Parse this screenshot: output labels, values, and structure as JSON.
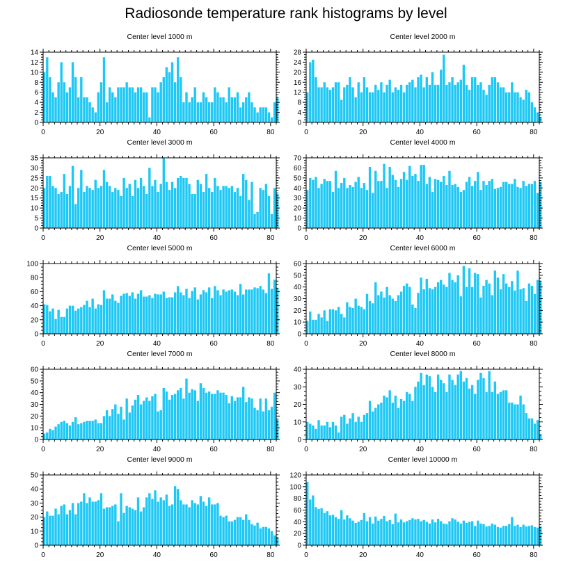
{
  "title": "Radiosonde temperature rank histograms by level",
  "colors": {
    "bar": "#1ec8f5",
    "axis": "#000000"
  },
  "chart_data": [
    {
      "type": "bar",
      "title": "Center level 1000 m",
      "xlim": [
        0,
        82
      ],
      "ylim": [
        0,
        14
      ],
      "xticks": [
        0,
        20,
        40,
        60,
        80
      ],
      "yticks": [
        0,
        2,
        4,
        6,
        8,
        10,
        12,
        14
      ],
      "values": [
        10,
        13,
        9,
        6,
        5,
        8,
        12,
        8,
        6,
        7,
        12,
        9,
        5,
        9,
        5,
        5,
        4,
        3,
        2,
        6,
        8,
        13,
        4,
        7,
        6,
        5,
        7,
        7,
        7,
        8,
        7,
        7,
        6,
        7,
        7,
        6,
        6,
        1,
        7,
        7,
        6,
        8,
        9,
        11,
        10,
        12,
        8,
        13,
        9,
        4,
        6,
        4,
        5,
        7,
        4,
        4,
        6,
        5,
        4,
        4,
        7,
        6,
        5,
        5,
        4,
        7,
        5,
        5,
        6,
        3,
        4,
        5,
        6,
        4,
        3,
        2,
        3,
        3,
        3,
        2,
        1,
        4,
        5
      ],
      "xlabel": "",
      "ylabel": ""
    },
    {
      "type": "bar",
      "title": "Center level 2000 m",
      "xlim": [
        0,
        82
      ],
      "ylim": [
        0,
        28
      ],
      "xticks": [
        0,
        20,
        40,
        60,
        80
      ],
      "yticks": [
        0,
        4,
        8,
        12,
        16,
        20,
        24,
        28
      ],
      "values": [
        12,
        24,
        25,
        18,
        14,
        14,
        16,
        14,
        13,
        14,
        16,
        16,
        9,
        14,
        15,
        18,
        14,
        10,
        16,
        12,
        18,
        14,
        12,
        12,
        15,
        13,
        16,
        12,
        15,
        17,
        12,
        14,
        13,
        15,
        12,
        15,
        16,
        17,
        14,
        18,
        19,
        14,
        18,
        15,
        20,
        15,
        15,
        21,
        27,
        15,
        16,
        18,
        15,
        16,
        17,
        23,
        15,
        13,
        18,
        18,
        15,
        16,
        13,
        11,
        15,
        18,
        18,
        16,
        14,
        14,
        12,
        12,
        16,
        12,
        12,
        10,
        9,
        13,
        12,
        8,
        6,
        4,
        2
      ],
      "xlabel": "",
      "ylabel": ""
    },
    {
      "type": "bar",
      "title": "Center level 3000 m",
      "xlim": [
        0,
        82
      ],
      "ylim": [
        0,
        35
      ],
      "xticks": [
        0,
        20,
        40,
        60,
        80
      ],
      "yticks": [
        0,
        5,
        10,
        15,
        20,
        25,
        30,
        35
      ],
      "values": [
        20,
        26,
        26,
        21,
        20,
        17,
        18,
        27,
        17,
        21,
        31,
        12,
        20,
        29,
        18,
        21,
        20,
        19,
        24,
        20,
        21,
        29,
        23,
        21,
        18,
        20,
        19,
        16,
        25,
        20,
        22,
        16,
        24,
        20,
        25,
        21,
        17,
        30,
        21,
        24,
        18,
        22,
        35,
        23,
        19,
        23,
        20,
        25,
        26,
        25,
        25,
        22,
        17,
        17,
        24,
        22,
        18,
        27,
        20,
        18,
        25,
        21,
        19,
        21,
        21,
        20,
        21,
        18,
        20,
        16,
        27,
        24,
        14,
        23,
        7,
        8,
        20,
        19,
        22,
        16,
        7,
        20,
        17
      ],
      "xlabel": "",
      "ylabel": ""
    },
    {
      "type": "bar",
      "title": "Center level 4000 m",
      "xlim": [
        0,
        82
      ],
      "ylim": [
        0,
        70
      ],
      "xticks": [
        0,
        20,
        40,
        60,
        80
      ],
      "yticks": [
        0,
        10,
        20,
        30,
        40,
        50,
        60,
        70
      ],
      "values": [
        38,
        50,
        48,
        51,
        40,
        44,
        49,
        47,
        47,
        36,
        57,
        40,
        45,
        50,
        40,
        43,
        41,
        46,
        51,
        40,
        45,
        38,
        61,
        35,
        57,
        47,
        47,
        64,
        40,
        61,
        53,
        48,
        41,
        49,
        56,
        48,
        62,
        52,
        54,
        47,
        63,
        63,
        44,
        51,
        36,
        49,
        48,
        46,
        52,
        43,
        57,
        43,
        44,
        41,
        36,
        38,
        46,
        51,
        42,
        47,
        56,
        38,
        47,
        43,
        47,
        49,
        39,
        40,
        41,
        46,
        46,
        44,
        44,
        49,
        41,
        40,
        47,
        42,
        44,
        44,
        47,
        35,
        46
      ],
      "xlabel": "",
      "ylabel": ""
    },
    {
      "type": "bar",
      "title": "Center level 5000 m",
      "xlim": [
        0,
        82
      ],
      "ylim": [
        0,
        100
      ],
      "xticks": [
        0,
        20,
        40,
        60,
        80
      ],
      "yticks": [
        0,
        20,
        40,
        60,
        80,
        100
      ],
      "values": [
        42,
        41,
        32,
        36,
        21,
        34,
        24,
        24,
        36,
        40,
        40,
        33,
        36,
        38,
        41,
        47,
        38,
        50,
        36,
        42,
        41,
        62,
        50,
        50,
        56,
        47,
        44,
        54,
        57,
        58,
        54,
        59,
        50,
        57,
        62,
        53,
        53,
        55,
        51,
        57,
        56,
        56,
        60,
        51,
        52,
        52,
        59,
        68,
        59,
        55,
        64,
        51,
        61,
        66,
        49,
        56,
        62,
        59,
        66,
        51,
        68,
        62,
        55,
        63,
        60,
        62,
        63,
        60,
        55,
        71,
        56,
        63,
        63,
        63,
        66,
        65,
        68,
        63,
        58,
        86,
        64,
        77,
        65
      ],
      "xlabel": "",
      "ylabel": ""
    },
    {
      "type": "bar",
      "title": "Center level 6000 m",
      "xlim": [
        0,
        82
      ],
      "ylim": [
        0,
        60
      ],
      "xticks": [
        0,
        20,
        40,
        60,
        80
      ],
      "yticks": [
        0,
        10,
        20,
        30,
        40,
        50,
        60
      ],
      "values": [
        11,
        19,
        12,
        12,
        17,
        14,
        20,
        11,
        21,
        21,
        20,
        23,
        17,
        14,
        27,
        23,
        22,
        30,
        24,
        23,
        21,
        34,
        28,
        26,
        44,
        33,
        36,
        31,
        40,
        33,
        30,
        28,
        33,
        36,
        41,
        43,
        40,
        25,
        22,
        35,
        48,
        38,
        47,
        39,
        38,
        40,
        44,
        46,
        42,
        40,
        52,
        46,
        44,
        50,
        32,
        58,
        40,
        56,
        40,
        52,
        51,
        31,
        41,
        46,
        43,
        33,
        54,
        48,
        38,
        51,
        43,
        40,
        45,
        37,
        54,
        38,
        39,
        28,
        43,
        41,
        34,
        46,
        45
      ],
      "xlabel": "",
      "ylabel": ""
    },
    {
      "type": "bar",
      "title": "Center level 7000 m",
      "xlim": [
        0,
        82
      ],
      "ylim": [
        0,
        60
      ],
      "xticks": [
        0,
        20,
        40,
        60,
        80
      ],
      "yticks": [
        0,
        10,
        20,
        30,
        40,
        50,
        60
      ],
      "values": [
        5,
        6,
        9,
        8,
        11,
        13,
        15,
        16,
        14,
        12,
        15,
        19,
        13,
        14,
        15,
        16,
        16,
        16,
        17,
        14,
        14,
        20,
        25,
        20,
        26,
        30,
        22,
        28,
        17,
        35,
        23,
        29,
        34,
        38,
        30,
        33,
        36,
        33,
        37,
        39,
        24,
        25,
        44,
        41,
        34,
        38,
        39,
        42,
        44,
        35,
        52,
        40,
        43,
        42,
        33,
        48,
        44,
        40,
        41,
        39,
        39,
        42,
        40,
        40,
        38,
        31,
        37,
        33,
        36,
        36,
        45,
        32,
        36,
        35,
        27,
        25,
        35,
        24,
        35,
        25,
        28,
        40,
        17
      ],
      "xlabel": "",
      "ylabel": ""
    },
    {
      "type": "bar",
      "title": "Center level 8000 m",
      "xlim": [
        0,
        82
      ],
      "ylim": [
        0,
        40
      ],
      "xticks": [
        0,
        20,
        40,
        60,
        80
      ],
      "yticks": [
        0,
        10,
        20,
        30,
        40
      ],
      "values": [
        10,
        9,
        8,
        6,
        11,
        8,
        8,
        10,
        7,
        10,
        8,
        4,
        13,
        14,
        9,
        12,
        15,
        10,
        13,
        10,
        14,
        15,
        22,
        16,
        18,
        20,
        21,
        25,
        24,
        28,
        21,
        25,
        18,
        23,
        22,
        27,
        26,
        22,
        30,
        33,
        38,
        31,
        37,
        36,
        30,
        27,
        37,
        34,
        32,
        27,
        37,
        34,
        31,
        37,
        39,
        33,
        35,
        29,
        31,
        26,
        34,
        38,
        35,
        27,
        39,
        27,
        33,
        26,
        27,
        28,
        28,
        21,
        21,
        20,
        20,
        25,
        20,
        15,
        12,
        12,
        9,
        11,
        3
      ],
      "xlabel": "",
      "ylabel": ""
    },
    {
      "type": "bar",
      "title": "Center level 9000 m",
      "xlim": [
        0,
        82
      ],
      "ylim": [
        0,
        50
      ],
      "xticks": [
        0,
        20,
        40,
        60,
        80
      ],
      "yticks": [
        0,
        10,
        20,
        30,
        40,
        50
      ],
      "values": [
        20,
        24,
        21,
        21,
        26,
        22,
        28,
        29,
        22,
        25,
        30,
        22,
        30,
        31,
        37,
        30,
        34,
        31,
        31,
        32,
        37,
        26,
        27,
        27,
        28,
        29,
        17,
        37,
        23,
        28,
        27,
        26,
        25,
        34,
        24,
        27,
        34,
        37,
        33,
        39,
        31,
        34,
        32,
        36,
        28,
        29,
        42,
        40,
        32,
        29,
        29,
        27,
        32,
        30,
        29,
        35,
        31,
        28,
        34,
        29,
        29,
        30,
        21,
        20,
        21,
        17,
        17,
        18,
        20,
        20,
        18,
        22,
        18,
        15,
        14,
        16,
        12,
        13,
        13,
        12,
        10,
        7,
        6
      ],
      "xlabel": "",
      "ylabel": ""
    },
    {
      "type": "bar",
      "title": "Center level 10000 m",
      "xlim": [
        0,
        82
      ],
      "ylim": [
        0,
        120
      ],
      "xticks": [
        0,
        20,
        40,
        60,
        80
      ],
      "yticks": [
        0,
        20,
        40,
        60,
        80,
        100,
        120
      ],
      "values": [
        108,
        78,
        85,
        65,
        62,
        63,
        55,
        58,
        51,
        52,
        48,
        45,
        60,
        44,
        51,
        46,
        42,
        38,
        40,
        43,
        55,
        41,
        48,
        37,
        49,
        42,
        45,
        50,
        41,
        43,
        36,
        54,
        39,
        44,
        39,
        41,
        43,
        46,
        44,
        45,
        41,
        43,
        40,
        37,
        44,
        39,
        45,
        41,
        37,
        36,
        41,
        46,
        44,
        40,
        37,
        42,
        38,
        40,
        41,
        33,
        42,
        37,
        36,
        32,
        33,
        37,
        35,
        31,
        30,
        33,
        33,
        36,
        48,
        33,
        35,
        31,
        35,
        32,
        33,
        34,
        31,
        30,
        32
      ],
      "xlabel": "",
      "ylabel": ""
    }
  ]
}
